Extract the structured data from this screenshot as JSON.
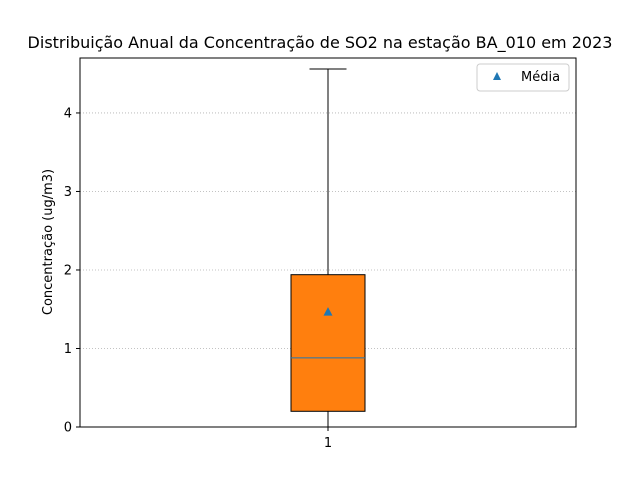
{
  "chart_data": {
    "type": "box",
    "title": "Distribuição Anual da Concentração de SO2 na estação BA_010 em 2023",
    "xlabel": "",
    "ylabel": "Concentração (ug/m3)",
    "ylim": [
      0,
      4.7
    ],
    "yticks": [
      "0",
      "1",
      "2",
      "3",
      "4"
    ],
    "categories": [
      "1"
    ],
    "grid": "y-dotted",
    "legend": {
      "placement": "top-right",
      "label": "Média"
    },
    "box": {
      "whisker_low": 0.0,
      "q1": 0.2,
      "median": 0.88,
      "q3": 1.94,
      "whisker_high": 4.56,
      "mean": 1.47
    },
    "colors": {
      "box_fill": "#ff7f0e",
      "median_line": "#1f77b4",
      "mean_marker": "#1f77b4",
      "grid": "#b0b0b0"
    }
  }
}
